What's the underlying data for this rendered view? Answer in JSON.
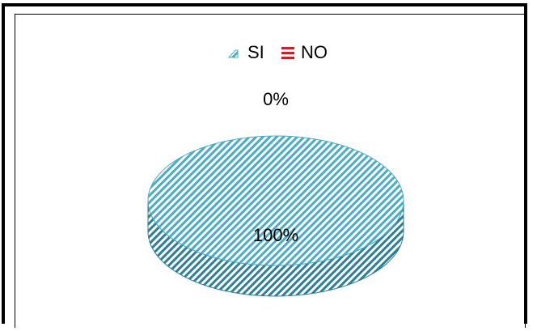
{
  "chart_data": {
    "type": "pie",
    "title": "",
    "legend_position": "top",
    "slices": [
      {
        "label": "SI",
        "value": 100,
        "display": "100%",
        "color": "#4bacc6"
      },
      {
        "label": "NO",
        "value": 0,
        "display": "0%",
        "color": "#c0262d"
      }
    ]
  }
}
